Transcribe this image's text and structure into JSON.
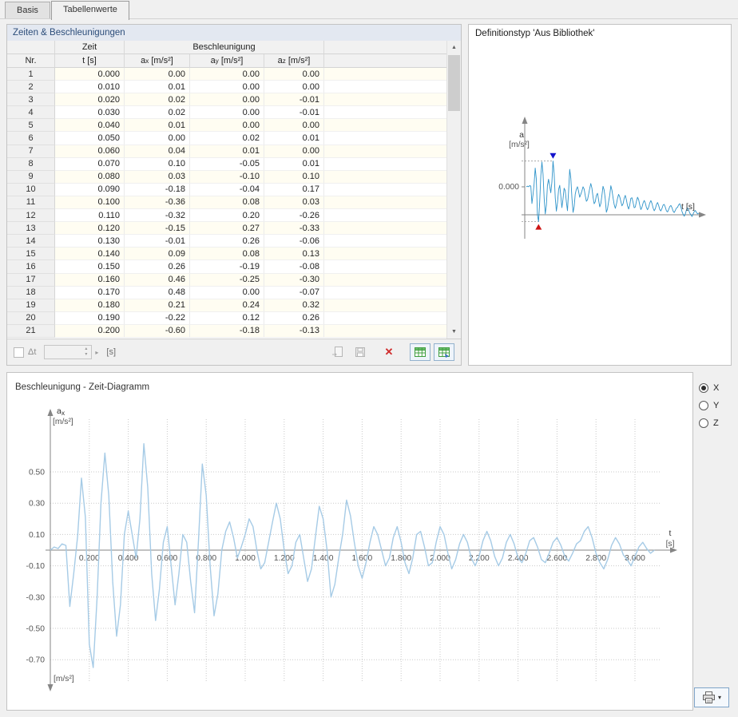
{
  "tabs": {
    "items": [
      {
        "label": "Basis",
        "active": false
      },
      {
        "label": "Tabellenwerte",
        "active": true
      }
    ]
  },
  "icons": {
    "scroll_up": "▲",
    "scroll_down": "▼",
    "spin_up": "▴",
    "spin_down": "▾",
    "expand_right": "▸",
    "caret_down": "▾",
    "delete": "✕"
  },
  "table_panel": {
    "title": "Zeiten & Beschleunigungen",
    "columns": {
      "nr": "Nr.",
      "time_group": "Zeit",
      "accel_group": "Beschleunigung",
      "t_label": "t [s]",
      "ax": {
        "sym": "a",
        "sub": "x",
        "unit": "[m/s²]"
      },
      "ay": {
        "sym": "a",
        "sub": "y",
        "unit": "[m/s²]"
      },
      "az": {
        "sym": "a",
        "sub": "z",
        "unit": "[m/s²]"
      }
    },
    "rows": [
      [
        "1",
        "0.000",
        "0.00",
        "0.00",
        "0.00"
      ],
      [
        "2",
        "0.010",
        "0.01",
        "0.00",
        "0.00"
      ],
      [
        "3",
        "0.020",
        "0.02",
        "0.00",
        "-0.01"
      ],
      [
        "4",
        "0.030",
        "0.02",
        "0.00",
        "-0.01"
      ],
      [
        "5",
        "0.040",
        "0.01",
        "0.00",
        "0.00"
      ],
      [
        "6",
        "0.050",
        "0.00",
        "0.02",
        "0.01"
      ],
      [
        "7",
        "0.060",
        "0.04",
        "0.01",
        "0.00"
      ],
      [
        "8",
        "0.070",
        "0.10",
        "-0.05",
        "0.01"
      ],
      [
        "9",
        "0.080",
        "0.03",
        "-0.10",
        "0.10"
      ],
      [
        "10",
        "0.090",
        "-0.18",
        "-0.04",
        "0.17"
      ],
      [
        "11",
        "0.100",
        "-0.36",
        "0.08",
        "0.03"
      ],
      [
        "12",
        "0.110",
        "-0.32",
        "0.20",
        "-0.26"
      ],
      [
        "13",
        "0.120",
        "-0.15",
        "0.27",
        "-0.33"
      ],
      [
        "14",
        "0.130",
        "-0.01",
        "0.26",
        "-0.06"
      ],
      [
        "15",
        "0.140",
        "0.09",
        "0.08",
        "0.13"
      ],
      [
        "16",
        "0.150",
        "0.26",
        "-0.19",
        "-0.08"
      ],
      [
        "17",
        "0.160",
        "0.46",
        "-0.25",
        "-0.30"
      ],
      [
        "18",
        "0.170",
        "0.48",
        "0.00",
        "-0.07"
      ],
      [
        "19",
        "0.180",
        "0.21",
        "0.24",
        "0.32"
      ],
      [
        "20",
        "0.190",
        "-0.22",
        "0.12",
        "0.26"
      ],
      [
        "21",
        "0.200",
        "-0.60",
        "-0.18",
        "-0.13"
      ]
    ],
    "footer": {
      "dt_label": "Δt",
      "unit": "[s]"
    }
  },
  "library_panel": {
    "title": "Definitionstyp 'Aus Bibliothek'",
    "axis_a": "a",
    "axis_a_unit": "[m/s²]",
    "zero_label": "0.000",
    "axis_t": "t [s]",
    "marker_max_color": "#1414cc",
    "marker_min_color": "#cc1414"
  },
  "diagram_panel": {
    "title": "Beschleunigung - Zeit-Diagramm",
    "y_axis": {
      "sym": "a",
      "sub": "x",
      "unit": "[m/s²]"
    },
    "bottom_unit": "[m/s²]",
    "t_label": "t",
    "t_unit": "[s]",
    "y_ticks": [
      "0.50",
      "0.30",
      "0.10",
      "-0.10",
      "-0.30",
      "-0.50",
      "-0.70"
    ],
    "x_ticks": [
      "0.200",
      "0.400",
      "0.600",
      "0.800",
      "1.000",
      "1.200",
      "1.400",
      "1.600",
      "1.800",
      "2.000",
      "2.200",
      "2.400",
      "2.600",
      "2.800",
      "3.000"
    ],
    "radios": [
      {
        "label": "X",
        "checked": true
      },
      {
        "label": "Y",
        "checked": false
      },
      {
        "label": "Z",
        "checked": false
      }
    ]
  },
  "chart_data": {
    "type": "line",
    "title": "Beschleunigung - Zeit-Diagramm",
    "xlabel": "t [s]",
    "ylabel": "ax [m/s²]",
    "xlim": [
      0,
      3.1
    ],
    "ylim": [
      -0.8,
      0.7
    ],
    "grid": true,
    "line_color": "#a6cbe6",
    "t_start": 0,
    "dt": 0.02,
    "values": [
      0.0,
      0.02,
      0.01,
      0.04,
      0.03,
      -0.36,
      -0.15,
      0.09,
      0.46,
      0.21,
      -0.6,
      -0.75,
      -0.3,
      0.3,
      0.62,
      0.35,
      -0.2,
      -0.55,
      -0.35,
      0.1,
      0.25,
      0.1,
      -0.05,
      0.2,
      0.68,
      0.4,
      -0.15,
      -0.45,
      -0.25,
      0.05,
      0.15,
      -0.1,
      -0.35,
      -0.15,
      0.1,
      0.05,
      -0.2,
      -0.4,
      0.05,
      0.55,
      0.35,
      -0.1,
      -0.42,
      -0.28,
      0.0,
      0.12,
      0.18,
      0.08,
      -0.05,
      0.02,
      0.1,
      0.2,
      0.15,
      0.0,
      -0.12,
      -0.08,
      0.05,
      0.18,
      0.3,
      0.2,
      0.0,
      -0.15,
      -0.1,
      0.05,
      0.1,
      -0.05,
      -0.2,
      -0.12,
      0.08,
      0.28,
      0.2,
      0.0,
      -0.3,
      -0.22,
      -0.05,
      0.1,
      0.32,
      0.22,
      0.05,
      -0.1,
      -0.18,
      -0.08,
      0.05,
      0.15,
      0.1,
      0.0,
      -0.1,
      -0.05,
      0.08,
      0.15,
      0.05,
      -0.08,
      -0.15,
      -0.05,
      0.1,
      0.12,
      0.02,
      -0.1,
      -0.08,
      0.05,
      0.15,
      0.1,
      -0.02,
      -0.12,
      -0.06,
      0.04,
      0.1,
      0.05,
      -0.05,
      -0.1,
      -0.04,
      0.06,
      0.12,
      0.06,
      -0.04,
      -0.1,
      -0.05,
      0.05,
      0.1,
      0.04,
      -0.05,
      -0.08,
      -0.02,
      0.06,
      0.08,
      0.02,
      -0.06,
      -0.08,
      -0.02,
      0.05,
      0.08,
      0.03,
      -0.04,
      -0.07,
      -0.02,
      0.04,
      0.06,
      0.12,
      0.15,
      0.08,
      -0.02,
      -0.08,
      -0.12,
      -0.06,
      0.03,
      0.08,
      0.04,
      -0.03,
      -0.06,
      -0.1,
      -0.04,
      0.02,
      0.05,
      0.01,
      -0.02,
      0.0
    ]
  }
}
